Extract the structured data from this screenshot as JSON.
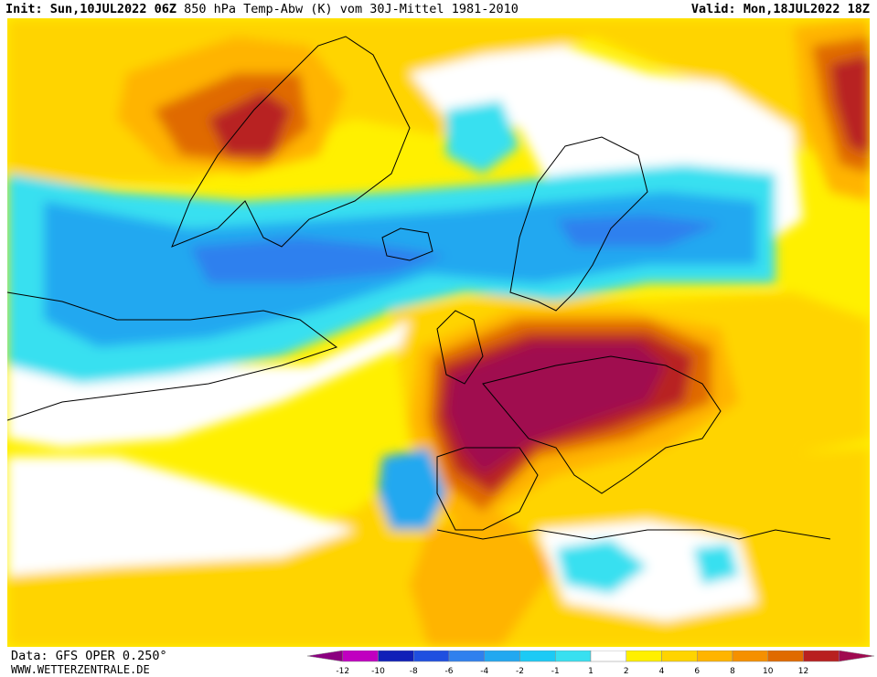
{
  "header": {
    "init_label": "Init:",
    "init_value": "Sun,10JUL2022 06Z",
    "title": "850 hPa Temp-Abw (K) vom 30J-Mittel 1981-2010",
    "valid_label": "Valid:",
    "valid_value": "Mon,18JUL2022 18Z"
  },
  "footer": {
    "data_source": "Data: GFS OPER 0.250°",
    "website": "WWW.WETTERZENTRALE.DE"
  },
  "legend": {
    "items": [
      {
        "color": "#8b0080",
        "label": ""
      },
      {
        "color": "#c000c0",
        "label": "-12"
      },
      {
        "color": "#1020b8",
        "label": "-10"
      },
      {
        "color": "#1f4fe0",
        "label": "-8"
      },
      {
        "color": "#2f80ee",
        "label": "-6"
      },
      {
        "color": "#22a8f0",
        "label": "-4"
      },
      {
        "color": "#1ccaf5",
        "label": "-2"
      },
      {
        "color": "#38e0f0",
        "label": "-1"
      },
      {
        "color": "#ffffff",
        "label": "1"
      },
      {
        "color": "#fff000",
        "label": "2"
      },
      {
        "color": "#ffd400",
        "label": "4"
      },
      {
        "color": "#ffb400",
        "label": "6"
      },
      {
        "color": "#f59000",
        "label": "8"
      },
      {
        "color": "#e06a00",
        "label": "10"
      },
      {
        "color": "#b82020",
        "label": "12"
      },
      {
        "color": "#a00a50",
        "label": ""
      }
    ]
  },
  "map_colors": {
    "warm_light": "#fff000",
    "warm_mid": "#ffd400",
    "warm_orange": "#ffb400",
    "warm_dark_orange": "#e06a00",
    "warm_red": "#b82020",
    "warm_magenta": "#b0104f",
    "cold_light": "#38e0f0",
    "cold_mid": "#22a8f0",
    "cold_dark": "#2f80ee",
    "neutral": "#ffffff",
    "coastline": "#000000"
  }
}
